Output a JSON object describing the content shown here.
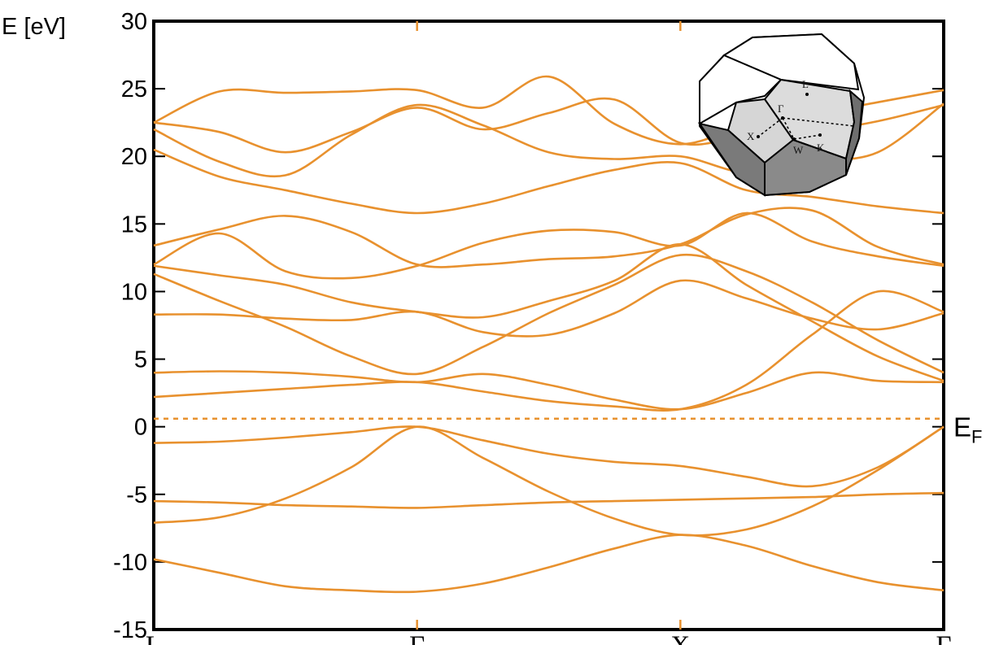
{
  "chart_data": {
    "type": "line",
    "ylabel": "E [eV]",
    "ylim": [
      -15,
      30
    ],
    "yticks": [
      -15,
      -10,
      -5,
      0,
      5,
      10,
      15,
      20,
      25,
      30
    ],
    "k_points": [
      "L",
      "Γ",
      "X",
      "Γ"
    ],
    "fermi": {
      "label": "E",
      "label_sub": "F",
      "value": 0.6
    },
    "grid": false,
    "line_color": "#E8912E",
    "inset": {
      "labels": [
        "L",
        "Γ",
        "X",
        "W",
        "K"
      ]
    },
    "bands": [
      {
        "x": [
          0,
          0.25,
          0.5,
          0.75,
          1,
          1.25,
          1.5,
          1.75,
          2,
          2.25,
          2.5,
          2.75,
          3
        ],
        "y": [
          -9.8,
          -10.8,
          -11.8,
          -12.1,
          -12.2,
          -11.6,
          -10.4,
          -9.0,
          -8.0,
          -8.8,
          -10.3,
          -11.5,
          -12.1
        ]
      },
      {
        "x": [
          0,
          0.25,
          0.5,
          0.75,
          1,
          1.25,
          1.5,
          1.75,
          2,
          2.25,
          2.5,
          2.75,
          3
        ],
        "y": [
          -7.1,
          -6.7,
          -5.3,
          -3.0,
          0,
          -2.3,
          -4.8,
          -6.8,
          -8.0,
          -7.6,
          -5.9,
          -3.2,
          0
        ]
      },
      {
        "x": [
          0,
          0.25,
          0.5,
          0.75,
          1,
          1.25,
          1.5,
          1.75,
          2,
          2.25,
          2.5,
          2.75,
          3
        ],
        "y": [
          -5.5,
          -5.6,
          -5.8,
          -5.9,
          -6.0,
          -5.8,
          -5.6,
          -5.5,
          -5.4,
          -5.3,
          -5.2,
          -5.0,
          -4.9
        ]
      },
      {
        "x": [
          0,
          0.25,
          0.5,
          0.75,
          1,
          1.25,
          1.5,
          1.75,
          2,
          2.25,
          2.5,
          2.75,
          3
        ],
        "y": [
          -1.2,
          -1.1,
          -0.8,
          -0.4,
          0,
          -1.0,
          -2.0,
          -2.6,
          -2.9,
          -3.7,
          -4.4,
          -3.0,
          0
        ]
      },
      {
        "x": [
          0,
          0.25,
          0.5,
          0.75,
          1,
          1.25,
          1.5,
          1.75,
          2,
          2.25,
          2.5,
          2.75,
          3
        ],
        "y": [
          2.2,
          2.5,
          2.8,
          3.1,
          3.3,
          2.6,
          1.9,
          1.5,
          1.3,
          3.1,
          6.8,
          10.0,
          8.5
        ]
      },
      {
        "x": [
          0,
          0.25,
          0.5,
          0.75,
          1,
          1.25,
          1.5,
          1.75,
          2,
          2.25,
          2.5,
          2.75,
          3
        ],
        "y": [
          4.0,
          4.1,
          4.0,
          3.7,
          3.3,
          3.9,
          3.1,
          2.0,
          1.3,
          2.5,
          4.0,
          3.4,
          3.3
        ]
      },
      {
        "x": [
          0,
          0.25,
          0.5,
          0.75,
          1,
          1.25,
          1.5,
          1.75,
          2,
          2.25,
          2.5,
          2.75,
          3
        ],
        "y": [
          8.3,
          8.3,
          8.0,
          7.9,
          8.5,
          7.0,
          6.8,
          8.4,
          10.8,
          9.5,
          8.0,
          7.2,
          8.4
        ]
      },
      {
        "x": [
          0,
          0.25,
          0.5,
          0.75,
          1,
          1.25,
          1.5,
          1.75,
          2,
          2.25,
          2.5,
          2.75,
          3
        ],
        "y": [
          11.3,
          9.3,
          7.4,
          5.2,
          3.9,
          5.9,
          8.4,
          10.5,
          12.7,
          11.5,
          9.2,
          6.4,
          4.0
        ]
      },
      {
        "x": [
          0,
          0.25,
          0.5,
          0.75,
          1,
          1.25,
          1.5,
          1.75,
          2,
          2.25,
          2.5,
          2.75,
          3
        ],
        "y": [
          11.9,
          11.2,
          10.5,
          9.2,
          8.5,
          8.1,
          9.3,
          10.8,
          13.5,
          10.5,
          7.8,
          5.2,
          3.4
        ]
      },
      {
        "x": [
          0,
          0.25,
          0.5,
          0.75,
          1,
          1.25,
          1.5,
          1.75,
          2,
          2.25,
          2.5,
          2.75,
          3
        ],
        "y": [
          12.0,
          14.3,
          11.5,
          11.0,
          11.9,
          13.6,
          14.5,
          14.4,
          13.4,
          15.8,
          13.7,
          12.6,
          11.9
        ]
      },
      {
        "x": [
          0,
          0.25,
          0.5,
          0.75,
          1,
          1.25,
          1.5,
          1.75,
          2,
          2.25,
          2.5,
          2.75,
          3
        ],
        "y": [
          13.4,
          14.6,
          15.6,
          14.4,
          12.0,
          12.0,
          12.4,
          12.6,
          13.5,
          15.7,
          16.0,
          13.3,
          12.0
        ]
      },
      {
        "x": [
          0,
          0.25,
          0.5,
          0.75,
          1,
          1.25,
          1.5,
          1.75,
          2,
          2.25,
          2.5,
          2.75,
          3
        ],
        "y": [
          20.5,
          18.5,
          17.5,
          16.5,
          15.8,
          16.5,
          17.8,
          19.0,
          19.5,
          17.5,
          17.0,
          16.3,
          15.8
        ]
      },
      {
        "x": [
          0,
          0.25,
          0.5,
          0.75,
          1,
          1.25,
          1.5,
          1.75,
          2,
          2.25,
          2.5,
          2.75,
          3
        ],
        "y": [
          22.0,
          19.6,
          18.6,
          21.6,
          23.8,
          22.3,
          20.3,
          19.8,
          20.0,
          18.8,
          19.6,
          20.3,
          23.9
        ]
      },
      {
        "x": [
          0,
          0.25,
          0.5,
          0.75,
          1,
          1.25,
          1.5,
          1.75,
          2,
          2.25,
          2.5,
          2.75,
          3
        ],
        "y": [
          22.5,
          21.8,
          20.3,
          21.8,
          23.6,
          22.0,
          23.2,
          24.2,
          21.0,
          21.5,
          21.8,
          22.6,
          23.8
        ]
      },
      {
        "x": [
          0,
          0.25,
          0.5,
          0.75,
          1,
          1.25,
          1.5,
          1.75,
          2,
          2.25,
          2.5,
          2.75,
          3
        ],
        "y": [
          22.5,
          24.8,
          24.7,
          24.8,
          24.9,
          23.6,
          25.9,
          22.4,
          20.9,
          22.3,
          23.1,
          24.0,
          24.9
        ]
      }
    ]
  }
}
